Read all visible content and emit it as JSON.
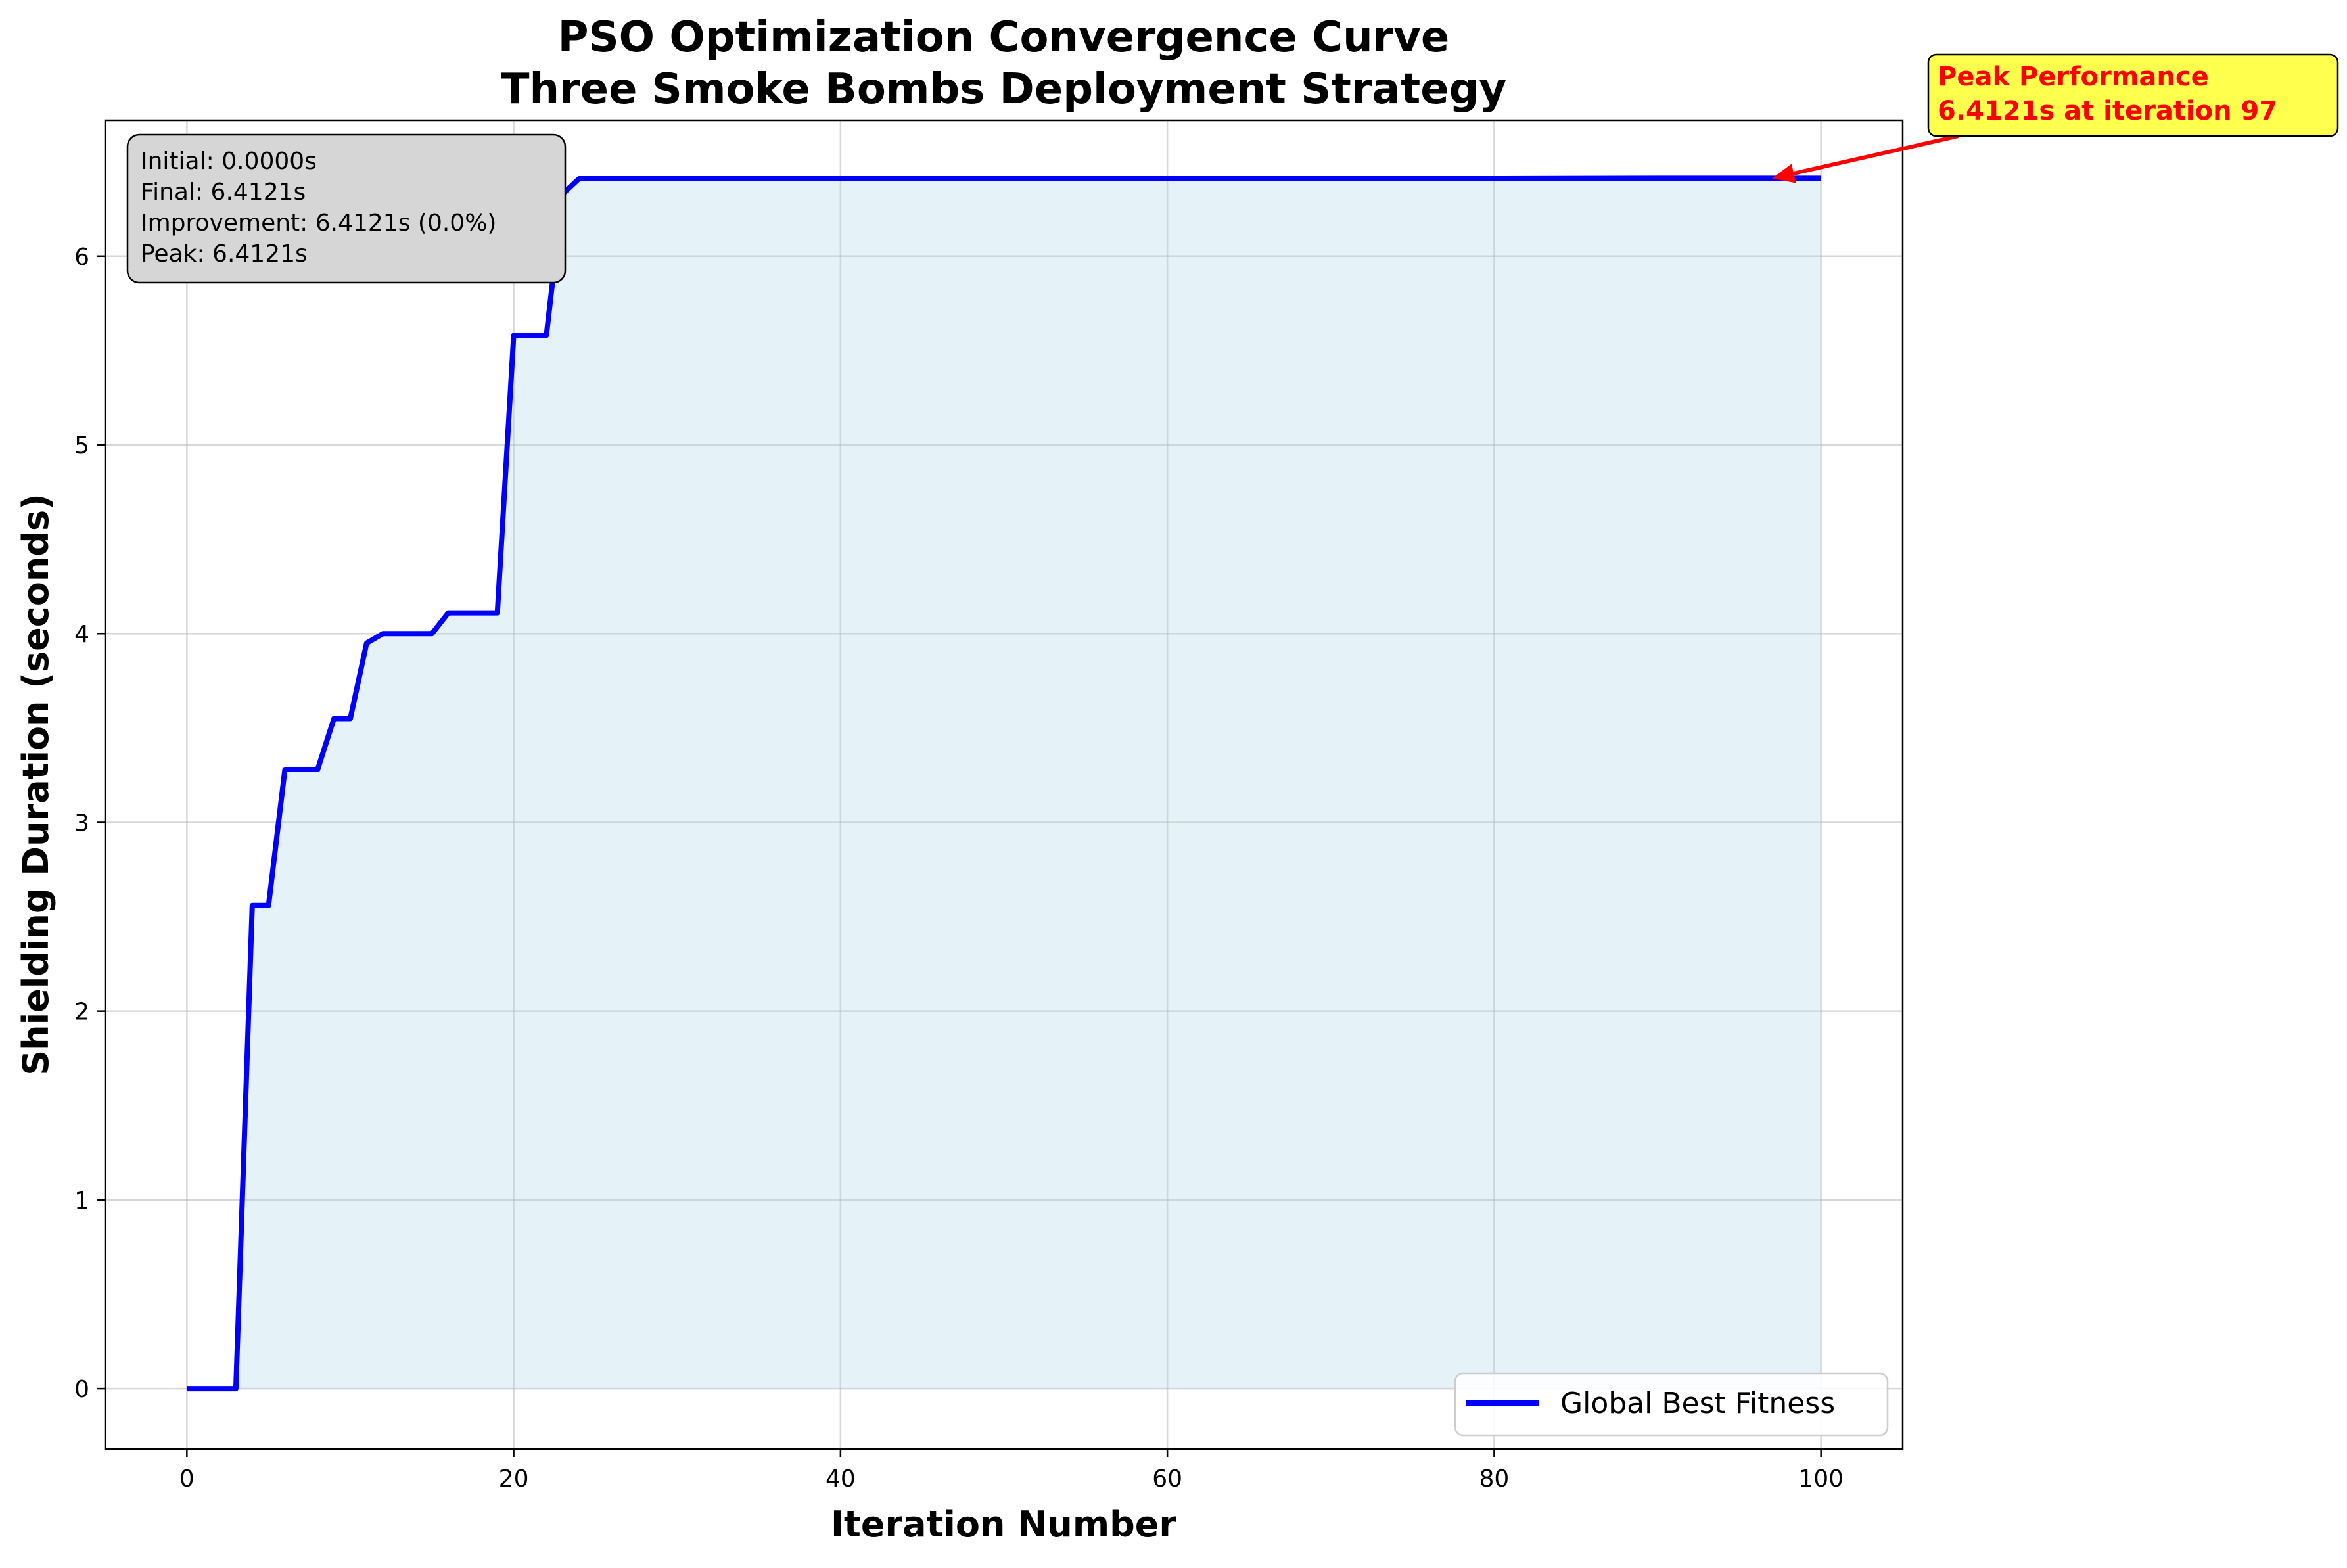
{
  "chart_data": {
    "type": "line",
    "title": [
      "PSO Optimization Convergence Curve",
      "Three Smoke Bombs Deployment Strategy"
    ],
    "xlabel": "Iteration Number",
    "ylabel": "Shielding Duration (seconds)",
    "xlim": [
      -5,
      105
    ],
    "ylim": [
      -0.32,
      6.72
    ],
    "xticks": [
      0,
      20,
      40,
      60,
      80,
      100
    ],
    "yticks": [
      0,
      1,
      2,
      3,
      4,
      5,
      6
    ],
    "grid": true,
    "fill_under_curve": true,
    "legend_position": "lower-right",
    "series": [
      {
        "name": "Global Best Fitness",
        "color": "#0000ff",
        "fill_color": "#add8e6",
        "x": [
          0,
          1,
          2,
          3,
          4,
          5,
          6,
          7,
          8,
          9,
          10,
          11,
          12,
          13,
          14,
          15,
          16,
          17,
          18,
          19,
          20,
          21,
          22,
          23,
          24,
          25,
          30,
          40,
          50,
          60,
          70,
          80,
          90,
          97,
          100
        ],
        "y": [
          0,
          0,
          0,
          0,
          2.56,
          2.56,
          3.28,
          3.28,
          3.28,
          3.55,
          3.55,
          3.95,
          4.0,
          4.0,
          4.0,
          4.0,
          4.11,
          4.11,
          4.11,
          4.11,
          5.58,
          5.58,
          5.58,
          6.33,
          6.41,
          6.41,
          6.41,
          6.41,
          6.41,
          6.41,
          6.41,
          6.41,
          6.4121,
          6.4121,
          6.4121
        ]
      }
    ],
    "stats_box": [
      "Initial: 0.0000s",
      "Final: 6.4121s",
      "Improvement: 6.4121s (0.0%)",
      "Peak: 6.4121s"
    ],
    "annotation": {
      "lines": [
        "Peak Performance",
        "6.4121s at iteration 97"
      ],
      "point": [
        97,
        6.4121
      ],
      "text_color": "#ff0000",
      "box_color": "#ffff4d"
    }
  }
}
